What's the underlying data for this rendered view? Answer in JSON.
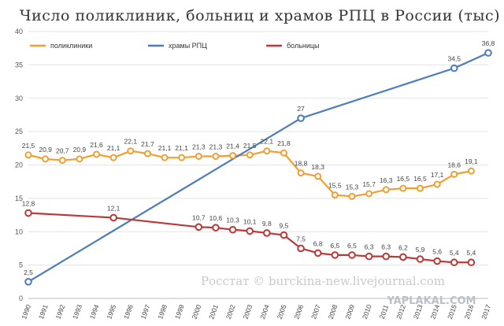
{
  "chart_data": {
    "type": "line",
    "title": "Число поликлиник, больниц и храмов РПЦ в России (тыс)",
    "xlabel": "",
    "ylabel": "",
    "ylim": [
      0,
      40
    ],
    "yticks": [
      0,
      5,
      10,
      15,
      20,
      25,
      30,
      35,
      40
    ],
    "x": [
      "1990",
      "1991",
      "1992",
      "1993",
      "1994",
      "1995",
      "1996",
      "1997",
      "1998",
      "1999",
      "2000",
      "2001",
      "2002",
      "2003",
      "2004",
      "2005",
      "2006",
      "2007",
      "2008",
      "2009",
      "2010",
      "2011",
      "2012",
      "2013",
      "2014",
      "2015",
      "2016",
      "2017"
    ],
    "grid": true,
    "legend_position": "top-left",
    "series": [
      {
        "name": "поликлиники",
        "color": "#f0a033",
        "values": [
          21.5,
          20.9,
          20.7,
          20.9,
          21.6,
          21.1,
          22.1,
          21.7,
          21.1,
          21.1,
          21.3,
          21.3,
          21.4,
          21.5,
          22.1,
          21.8,
          18.8,
          18.3,
          15.5,
          15.3,
          15.7,
          16.3,
          16.5,
          16.5,
          17.1,
          18.6,
          19.1,
          null
        ],
        "labels": [
          "21,5",
          "20,9",
          "20,7",
          "20,9",
          "21,6",
          "21,1",
          "22,1",
          "21,7",
          "21,1",
          "21,1",
          "21,3",
          "21,3",
          "21,4",
          "21,5",
          "22,1",
          "21,8",
          "18,8",
          "18,3",
          "15,5",
          "15,3",
          "15,7",
          "16,3",
          "16,5",
          "16,5",
          "17,1",
          "18,6",
          "19,1",
          ""
        ],
        "marked_points": [],
        "marker_all": true
      },
      {
        "name": "храмы РПЦ",
        "color": "#4a7cbf",
        "values": [
          2.5,
          null,
          null,
          null,
          null,
          null,
          null,
          null,
          null,
          null,
          null,
          null,
          null,
          null,
          null,
          null,
          27,
          null,
          null,
          null,
          null,
          null,
          null,
          null,
          null,
          34.5,
          null,
          36.8
        ],
        "labels": [
          "2,5",
          "",
          "",
          "",
          "",
          "",
          "",
          "",
          "",
          "",
          "",
          "",
          "",
          "",
          "",
          "",
          "27",
          "",
          "",
          "",
          "",
          "",
          "",
          "",
          "",
          "34,5",
          "",
          "36,8"
        ],
        "marked_points": [
          0,
          16,
          25,
          27
        ],
        "marker_all": false
      },
      {
        "name": "больницы",
        "color": "#b83a3a",
        "values": [
          12.8,
          null,
          null,
          null,
          null,
          12.1,
          null,
          null,
          null,
          null,
          10.7,
          10.6,
          10.3,
          10.1,
          9.8,
          9.5,
          7.5,
          6.8,
          6.5,
          6.5,
          6.3,
          6.3,
          6.2,
          5.9,
          5.6,
          5.4,
          5.4,
          null
        ],
        "labels": [
          "12,8",
          "",
          "",
          "",
          "",
          "12,1",
          "",
          "",
          "",
          "",
          "10,7",
          "10,6",
          "10,3",
          "10,1",
          "9,8",
          "9,5",
          "7,5",
          "6,8",
          "6,5",
          "6,5",
          "6,3",
          "6,3",
          "6,2",
          "5,9",
          "5,6",
          "5,4",
          "5,4",
          ""
        ],
        "marked_points": [
          0,
          5,
          10,
          11,
          12,
          13,
          14,
          15,
          16,
          17,
          18,
          19,
          20,
          21,
          22,
          23,
          24,
          25,
          26
        ],
        "marker_all": false
      }
    ],
    "annotations": {
      "watermark": "Росстат © burckina-new.livejournal.com",
      "logo": "YAPLAKAL.COM"
    }
  }
}
